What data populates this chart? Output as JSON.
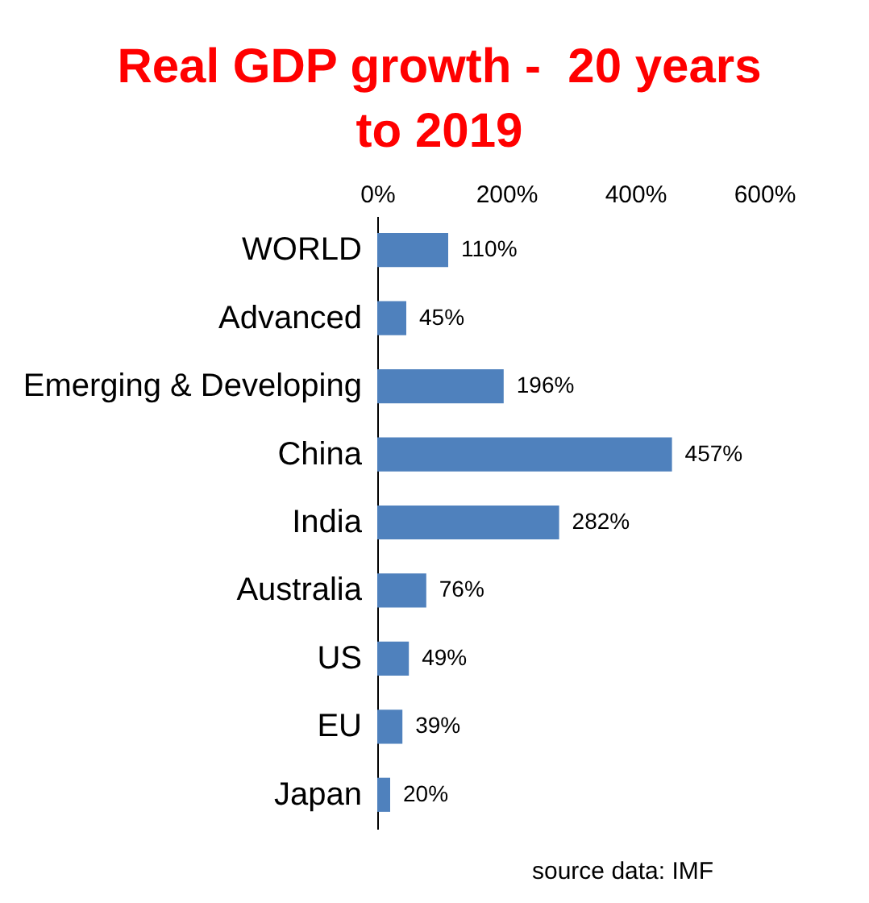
{
  "chart_data": {
    "type": "bar",
    "orientation": "horizontal",
    "title": "Real GDP growth -  20 years to 2019",
    "categories": [
      "WORLD",
      "Advanced",
      "Emerging & Developing",
      "China",
      "India",
      "Australia",
      "US",
      "EU",
      "Japan"
    ],
    "values": [
      110,
      45,
      196,
      457,
      282,
      76,
      49,
      39,
      20
    ],
    "value_labels": [
      "110%",
      "45%",
      "196%",
      "457%",
      "282%",
      "76%",
      "49%",
      "39%",
      "20%"
    ],
    "color": "#4f81bd",
    "xlim": [
      0,
      600
    ],
    "xticks": [
      {
        "value": 0,
        "label": "0%"
      },
      {
        "value": 200,
        "label": "200%"
      },
      {
        "value": 400,
        "label": "400%"
      },
      {
        "value": 600,
        "label": "600%"
      }
    ],
    "grid": false,
    "annotations": [
      "source data: IMF"
    ]
  }
}
